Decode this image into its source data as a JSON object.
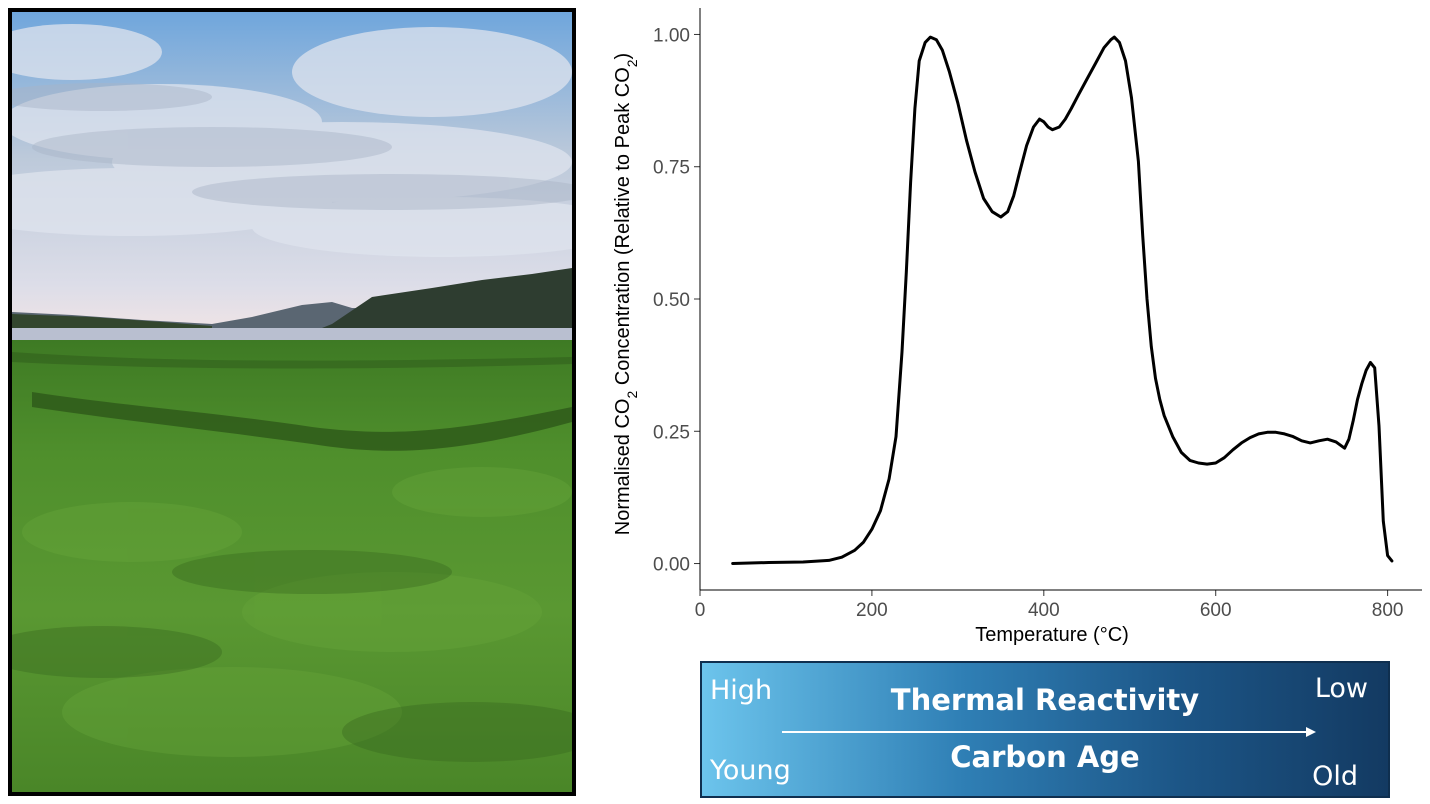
{
  "photo": {
    "subject": "salt marsh with estuary and hills",
    "colors": {
      "sky_top": "#6fa6dc",
      "sky_mid": "#bcc9da",
      "horizon": "#f0e4e6",
      "hill": "#2e3d30",
      "water": "#b9bfd0",
      "grass": "#4f8f2c",
      "grass_dark": "#2f5a1a"
    }
  },
  "chart_data": {
    "type": "line",
    "xlabel": "Temperature (°C)",
    "ylabel_parts": [
      "Normalised CO",
      "2",
      " Concentration (Relative to Peak CO",
      "2",
      ")"
    ],
    "xlim": [
      0,
      840
    ],
    "ylim": [
      -0.05,
      1.05
    ],
    "xticks": [
      0,
      200,
      400,
      600,
      800
    ],
    "yticks": [
      0.0,
      0.25,
      0.5,
      0.75,
      1.0
    ],
    "ytick_labels": [
      "0.00",
      "0.25",
      "0.50",
      "0.75",
      "1.00"
    ],
    "grid": false,
    "line_color": "#000000",
    "series": [
      {
        "x": [
          38,
          80,
          120,
          150,
          165,
          180,
          190,
          200,
          210,
          220,
          228,
          235,
          240,
          245,
          250,
          255,
          262,
          268,
          275,
          282,
          290,
          300,
          310,
          320,
          330,
          340,
          350,
          358,
          365,
          372,
          380,
          388,
          395,
          400,
          405,
          410,
          418,
          425,
          432,
          440,
          450,
          460,
          470,
          478,
          482,
          488,
          495,
          502,
          510,
          515,
          520,
          525,
          530,
          535,
          540,
          550,
          560,
          570,
          580,
          590,
          600,
          610,
          620,
          630,
          640,
          650,
          660,
          670,
          680,
          690,
          700,
          710,
          720,
          730,
          740,
          750,
          755,
          760,
          765,
          770,
          775,
          780,
          785,
          790,
          795,
          800,
          805
        ],
        "y": [
          0.0,
          0.002,
          0.003,
          0.006,
          0.012,
          0.025,
          0.04,
          0.065,
          0.1,
          0.16,
          0.24,
          0.4,
          0.55,
          0.72,
          0.86,
          0.95,
          0.985,
          0.995,
          0.99,
          0.97,
          0.93,
          0.87,
          0.8,
          0.74,
          0.69,
          0.665,
          0.655,
          0.665,
          0.695,
          0.74,
          0.79,
          0.825,
          0.84,
          0.835,
          0.825,
          0.82,
          0.825,
          0.84,
          0.86,
          0.885,
          0.915,
          0.945,
          0.975,
          0.99,
          0.995,
          0.985,
          0.95,
          0.88,
          0.76,
          0.62,
          0.5,
          0.41,
          0.35,
          0.31,
          0.28,
          0.24,
          0.21,
          0.195,
          0.19,
          0.188,
          0.19,
          0.2,
          0.215,
          0.228,
          0.238,
          0.245,
          0.248,
          0.248,
          0.245,
          0.24,
          0.232,
          0.228,
          0.232,
          0.235,
          0.23,
          0.218,
          0.235,
          0.27,
          0.31,
          0.34,
          0.365,
          0.38,
          0.37,
          0.26,
          0.08,
          0.015,
          0.005
        ]
      }
    ]
  },
  "banner": {
    "title_top": "Thermal Reactivity",
    "title_bottom": "Carbon Age",
    "left_top": "High",
    "left_bottom": "Young",
    "right_top": "Low",
    "right_bottom": "Old",
    "arrow_icon": "right-arrow-icon"
  }
}
